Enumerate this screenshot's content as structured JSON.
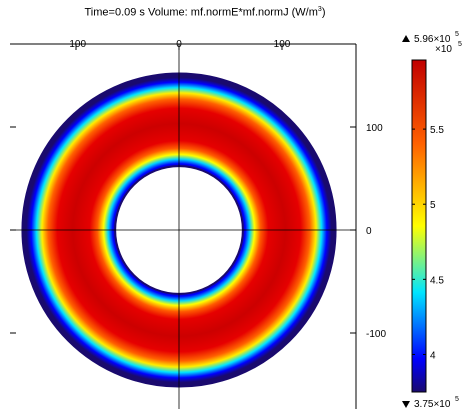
{
  "plot": {
    "title_prefix": "Time=0.09 s   Volume: mf.normE*mf.normJ (W/m",
    "title_sup": "3",
    "title_suffix": ")"
  },
  "chart_data": {
    "type": "heatmap",
    "title": "Time=0.09 s   Volume: mf.normE*mf.normJ (W/m³)",
    "x_ticks": [
      -100,
      0,
      100
    ],
    "y_ticks": [
      100,
      0,
      -100
    ],
    "x_tick_labels": [
      "-100",
      "0",
      "100"
    ],
    "y_tick_labels": [
      "100",
      "0",
      "-100"
    ],
    "xlim": [
      -168,
      160
    ],
    "ylim": [
      -150,
      150
    ],
    "field": {
      "shape": "annulus",
      "center": [
        0,
        0
      ],
      "inner_radius": 62,
      "outer_radius": 152,
      "peak_radius": 107,
      "peak_value": 596000,
      "min_value": 375000
    },
    "colorbar": {
      "colormap": "rainbow",
      "max_label_base": "5.96×10",
      "max_label_exp": "5",
      "min_label_base": "3.75×10",
      "min_label_exp": "5",
      "exponent_base": "×10",
      "exponent_power": "5",
      "ticks": [
        4,
        4.5,
        5,
        5.5
      ],
      "tick_labels": [
        "4",
        "4.5",
        "5",
        "5.5"
      ],
      "range": [
        3.75,
        5.96
      ]
    },
    "grid": true
  }
}
